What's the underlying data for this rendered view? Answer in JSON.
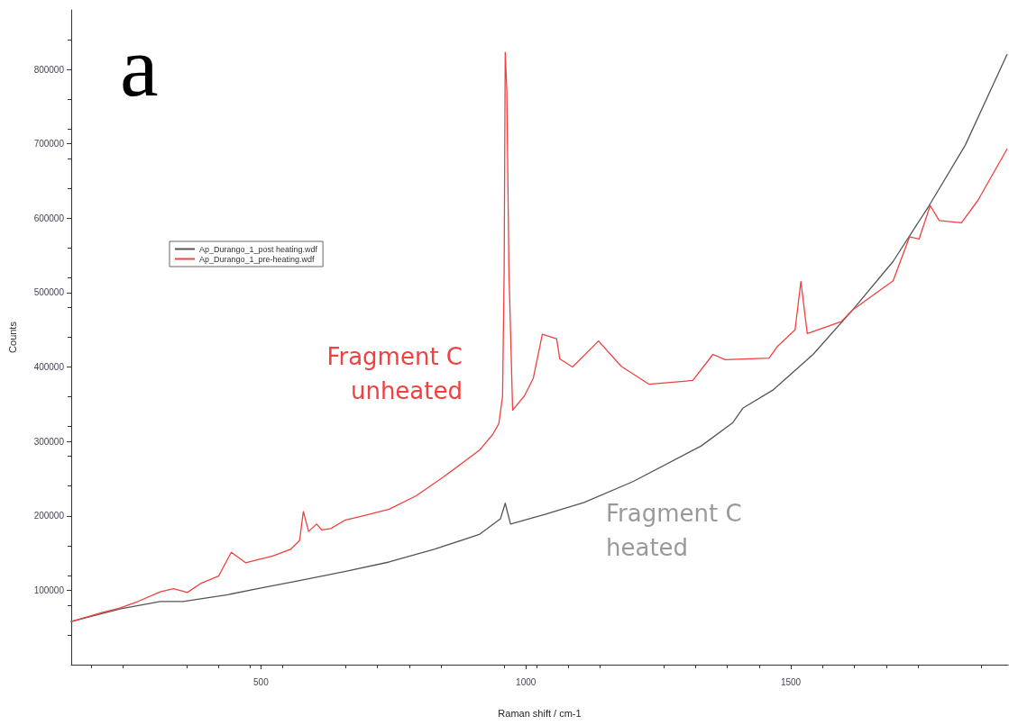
{
  "chart_data": {
    "type": "line",
    "xlabel": "Raman shift / cm-1",
    "ylabel": "Counts",
    "xlim": [
      142,
      1910
    ],
    "xticks": [
      500,
      1000,
      1500
    ],
    "ylim": [
      0,
      880000
    ],
    "yticks": [
      100000,
      200000,
      300000,
      400000,
      500000,
      600000,
      700000,
      800000
    ],
    "grid": false,
    "legend": "top left",
    "marker": "none",
    "line_style": "solid",
    "annotations": [
      "a",
      "Fragment C\nheated",
      "Fragment C\nunheated"
    ],
    "series": [
      {
        "name": "Ap_Durango_1_post heating.wdf",
        "color": "#555555",
        "x": [
          142,
          234,
          310,
          353,
          437,
          500,
          573,
          658,
          742,
          827,
          912,
          952,
          961,
          971,
          1036,
          1110,
          1202,
          1331,
          1390,
          1410,
          1466,
          1542,
          1617,
          1693,
          1761,
          1829,
          1908
        ],
        "values": [
          58000,
          75000,
          85000,
          85000,
          94000,
          103000,
          113000,
          125000,
          138000,
          155000,
          175000,
          196000,
          217000,
          189000,
          202000,
          218000,
          246000,
          294000,
          325000,
          345000,
          369000,
          417000,
          477000,
          542000,
          617000,
          698000,
          820000
        ]
      },
      {
        "name": "Ap_Durango_1_pre-heating.wdf",
        "color": "#f04040",
        "x": [
          142,
          200,
          234,
          268,
          310,
          335,
          361,
          386,
          420,
          444,
          471,
          505,
          522,
          556,
          573,
          580,
          590,
          605,
          615,
          632,
          658,
          692,
          742,
          793,
          844,
          878,
          912,
          937,
          949,
          956,
          959,
          961,
          964,
          968,
          975,
          997,
          1014,
          1031,
          1058,
          1064,
          1088,
          1137,
          1180,
          1232,
          1315,
          1353,
          1376,
          1459,
          1475,
          1508,
          1519,
          1531,
          1595,
          1617,
          1693,
          1724,
          1742,
          1763,
          1780,
          1822,
          1853,
          1908
        ],
        "values": [
          58000,
          70000,
          76000,
          85000,
          98000,
          102000,
          97000,
          109000,
          119000,
          151000,
          137000,
          143000,
          146000,
          155000,
          167000,
          206000,
          179000,
          189000,
          181000,
          183000,
          194000,
          200000,
          209000,
          227000,
          252000,
          270000,
          288000,
          309000,
          324000,
          361000,
          530000,
          823000,
          772000,
          530000,
          342000,
          361000,
          385000,
          444000,
          438000,
          411000,
          400000,
          435000,
          401000,
          377000,
          382000,
          417000,
          410000,
          412000,
          428000,
          450000,
          515000,
          445000,
          461000,
          477000,
          516000,
          575000,
          572000,
          617000,
          597000,
          594000,
          624000,
          693000
        ]
      }
    ]
  }
}
